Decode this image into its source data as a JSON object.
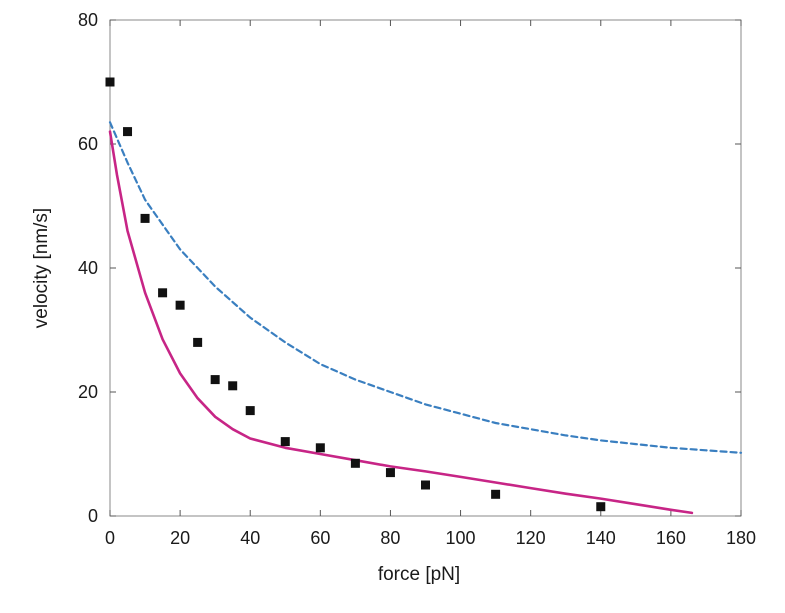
{
  "chart_data": {
    "type": "scatter",
    "title": "",
    "xlabel": "force [pN]",
    "ylabel": "velocity [nm/s]",
    "xlim": [
      0,
      180
    ],
    "ylim": [
      0,
      80
    ],
    "x_ticks": [
      0,
      20,
      40,
      60,
      80,
      100,
      120,
      140,
      160,
      180
    ],
    "y_ticks": [
      0,
      20,
      40,
      60,
      80
    ],
    "grid": false,
    "legend": "none",
    "series": [
      {
        "kind": "scatter",
        "color": "#111111",
        "marker": "square",
        "x": [
          0,
          5,
          10,
          15,
          20,
          25,
          30,
          35,
          40,
          50,
          60,
          70,
          80,
          90,
          110,
          140
        ],
        "y": [
          70,
          62,
          48,
          36,
          34,
          28,
          22,
          21,
          17,
          12,
          11,
          8.5,
          7,
          5,
          3.5,
          1.5
        ]
      },
      {
        "kind": "line",
        "color": "#c72586",
        "style": "solid",
        "x": [
          0,
          2,
          5,
          10,
          15,
          20,
          25,
          30,
          35,
          40,
          50,
          60,
          70,
          80,
          90,
          100,
          110,
          120,
          130,
          140,
          150,
          160,
          166
        ],
        "y": [
          62,
          55,
          46,
          36,
          28.5,
          23,
          19,
          16,
          14,
          12.5,
          11,
          10,
          9,
          8,
          7.2,
          6.3,
          5.4,
          4.5,
          3.6,
          2.8,
          1.9,
          1.0,
          0.5
        ]
      },
      {
        "kind": "line",
        "color": "#3a7fc0",
        "style": "dashed",
        "x": [
          0,
          5,
          10,
          20,
          30,
          40,
          50,
          60,
          70,
          80,
          90,
          100,
          110,
          120,
          130,
          140,
          150,
          160,
          170,
          180
        ],
        "y": [
          63.5,
          57,
          51,
          43,
          37,
          32,
          28,
          24.5,
          22,
          20,
          18,
          16.5,
          15,
          14,
          13,
          12.2,
          11.6,
          11,
          10.6,
          10.2
        ]
      }
    ]
  }
}
